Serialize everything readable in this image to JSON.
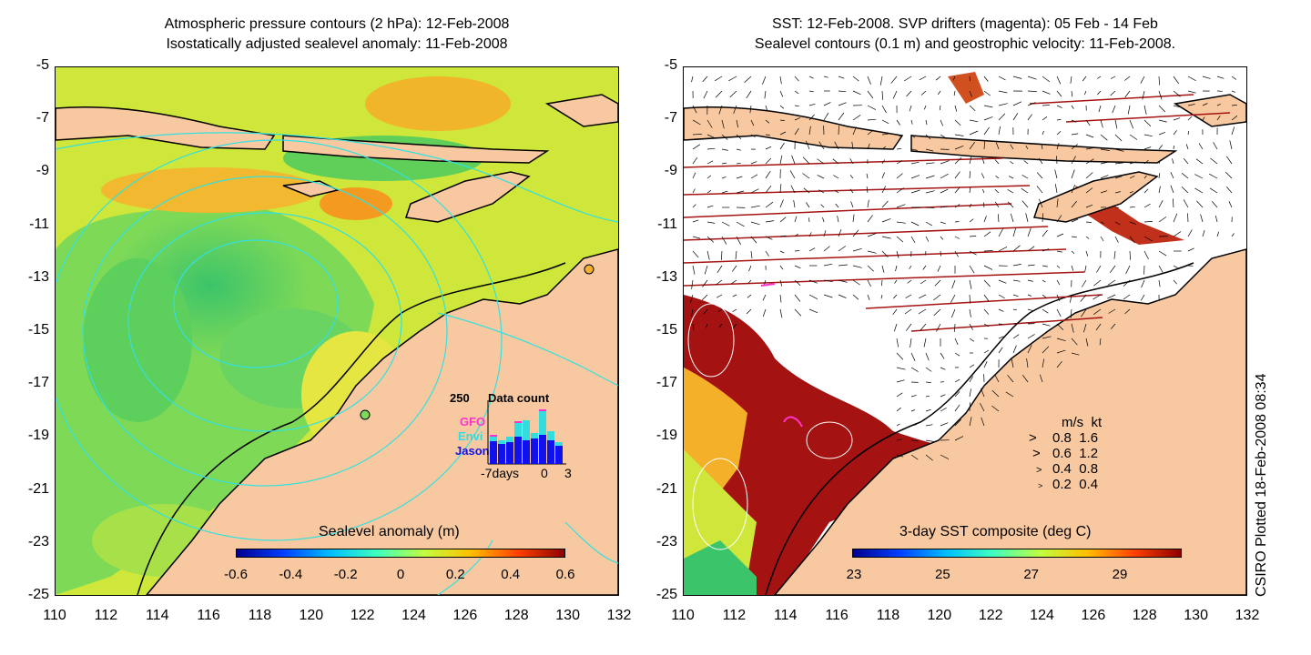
{
  "left_panel": {
    "title_line1": "Atmospheric pressure contours (2 hPa): 12-Feb-2008",
    "title_line2": "Isostatically adjusted sealevel anomaly: 11-Feb-2008",
    "colorbar_title": "Sealevel anomaly (m)",
    "colorbar_ticks": [
      "-0.6",
      "-0.4",
      "-0.2",
      "0",
      "0.2",
      "0.4",
      "0.6"
    ],
    "inset": {
      "y_max": "250",
      "title": "Data count",
      "series": [
        "GFO",
        "Envi",
        "Jason"
      ],
      "series_colors": [
        "#ff33cc",
        "#33dddd",
        "#1111ee"
      ],
      "x_labels": [
        "-7days",
        "0",
        "3"
      ]
    }
  },
  "right_panel": {
    "title_line1": "SST: 12-Feb-2008. SVP drifters (magenta): 05 Feb - 14 Feb",
    "title_line2": "Sealevel contours (0.1 m) and geostrophic velocity: 11-Feb-2008.",
    "colorbar_title": "3-day SST composite (deg C)",
    "colorbar_ticks": [
      "23",
      "25",
      "27",
      "29"
    ],
    "velocity_legend": {
      "header": [
        "m/s",
        "kt"
      ],
      "rows": [
        [
          "0.8",
          "1.6"
        ],
        [
          "0.6",
          "1.2"
        ],
        [
          "0.4",
          "0.8"
        ],
        [
          "0.2",
          "0.4"
        ]
      ]
    }
  },
  "axes": {
    "y_ticks": [
      "-5",
      "-7",
      "-9",
      "-11",
      "-13",
      "-15",
      "-17",
      "-19",
      "-21",
      "-23",
      "-25"
    ],
    "x_ticks": [
      "110",
      "112",
      "114",
      "116",
      "118",
      "120",
      "122",
      "124",
      "126",
      "128",
      "130",
      "132"
    ]
  },
  "stamp": "CSIRO Plotted 18-Feb-2008 08:34",
  "colors": {
    "land": "#f8c9a0",
    "ocean_green": "#7ed957",
    "ocean_yellow": "#e6e642",
    "ocean_orange": "#f5b02a",
    "sst_red": "#a51212",
    "contour_cyan": "#33e0e0"
  }
}
